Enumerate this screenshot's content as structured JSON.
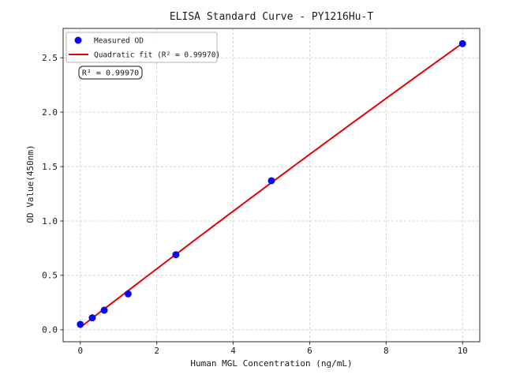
{
  "chart_data": {
    "type": "scatter",
    "title": "ELISA Standard Curve - PY1216Hu-T",
    "xlabel": "Human MGL Concentration (ng/mL)",
    "ylabel": "OD Value(450nm)",
    "series": [
      {
        "name": "Measured OD",
        "type": "scatter",
        "color": "#0a0aee",
        "x": [
          0,
          0.313,
          0.625,
          1.25,
          2.5,
          5,
          10
        ],
        "y": [
          0.05,
          0.11,
          0.18,
          0.33,
          0.69,
          1.37,
          2.63
        ]
      },
      {
        "name": "Quadratic fit (R² = 0.99970)",
        "type": "line",
        "fit": "quadratic",
        "r_squared": 0.9997,
        "color": "#e60000",
        "x_range": [
          0,
          10
        ]
      }
    ],
    "xlim": [
      -0.45,
      10.45
    ],
    "ylim": [
      -0.11,
      2.77
    ],
    "xticks": [
      0,
      2,
      4,
      6,
      8,
      10
    ],
    "xtick_labels": [
      "0",
      "2",
      "4",
      "6",
      "8",
      "10"
    ],
    "yticks": [
      0,
      0.5,
      1.0,
      1.5,
      2.0,
      2.5
    ],
    "ytick_labels": [
      "0.0",
      "0.5",
      "1.0",
      "1.5",
      "2.0",
      "2.5"
    ],
    "grid": true,
    "grid_color": "#c9c9c9",
    "spine_color": "#2b2b2b",
    "legend_position": "upper left"
  },
  "annotation": {
    "text": "R² = 0.99970"
  }
}
